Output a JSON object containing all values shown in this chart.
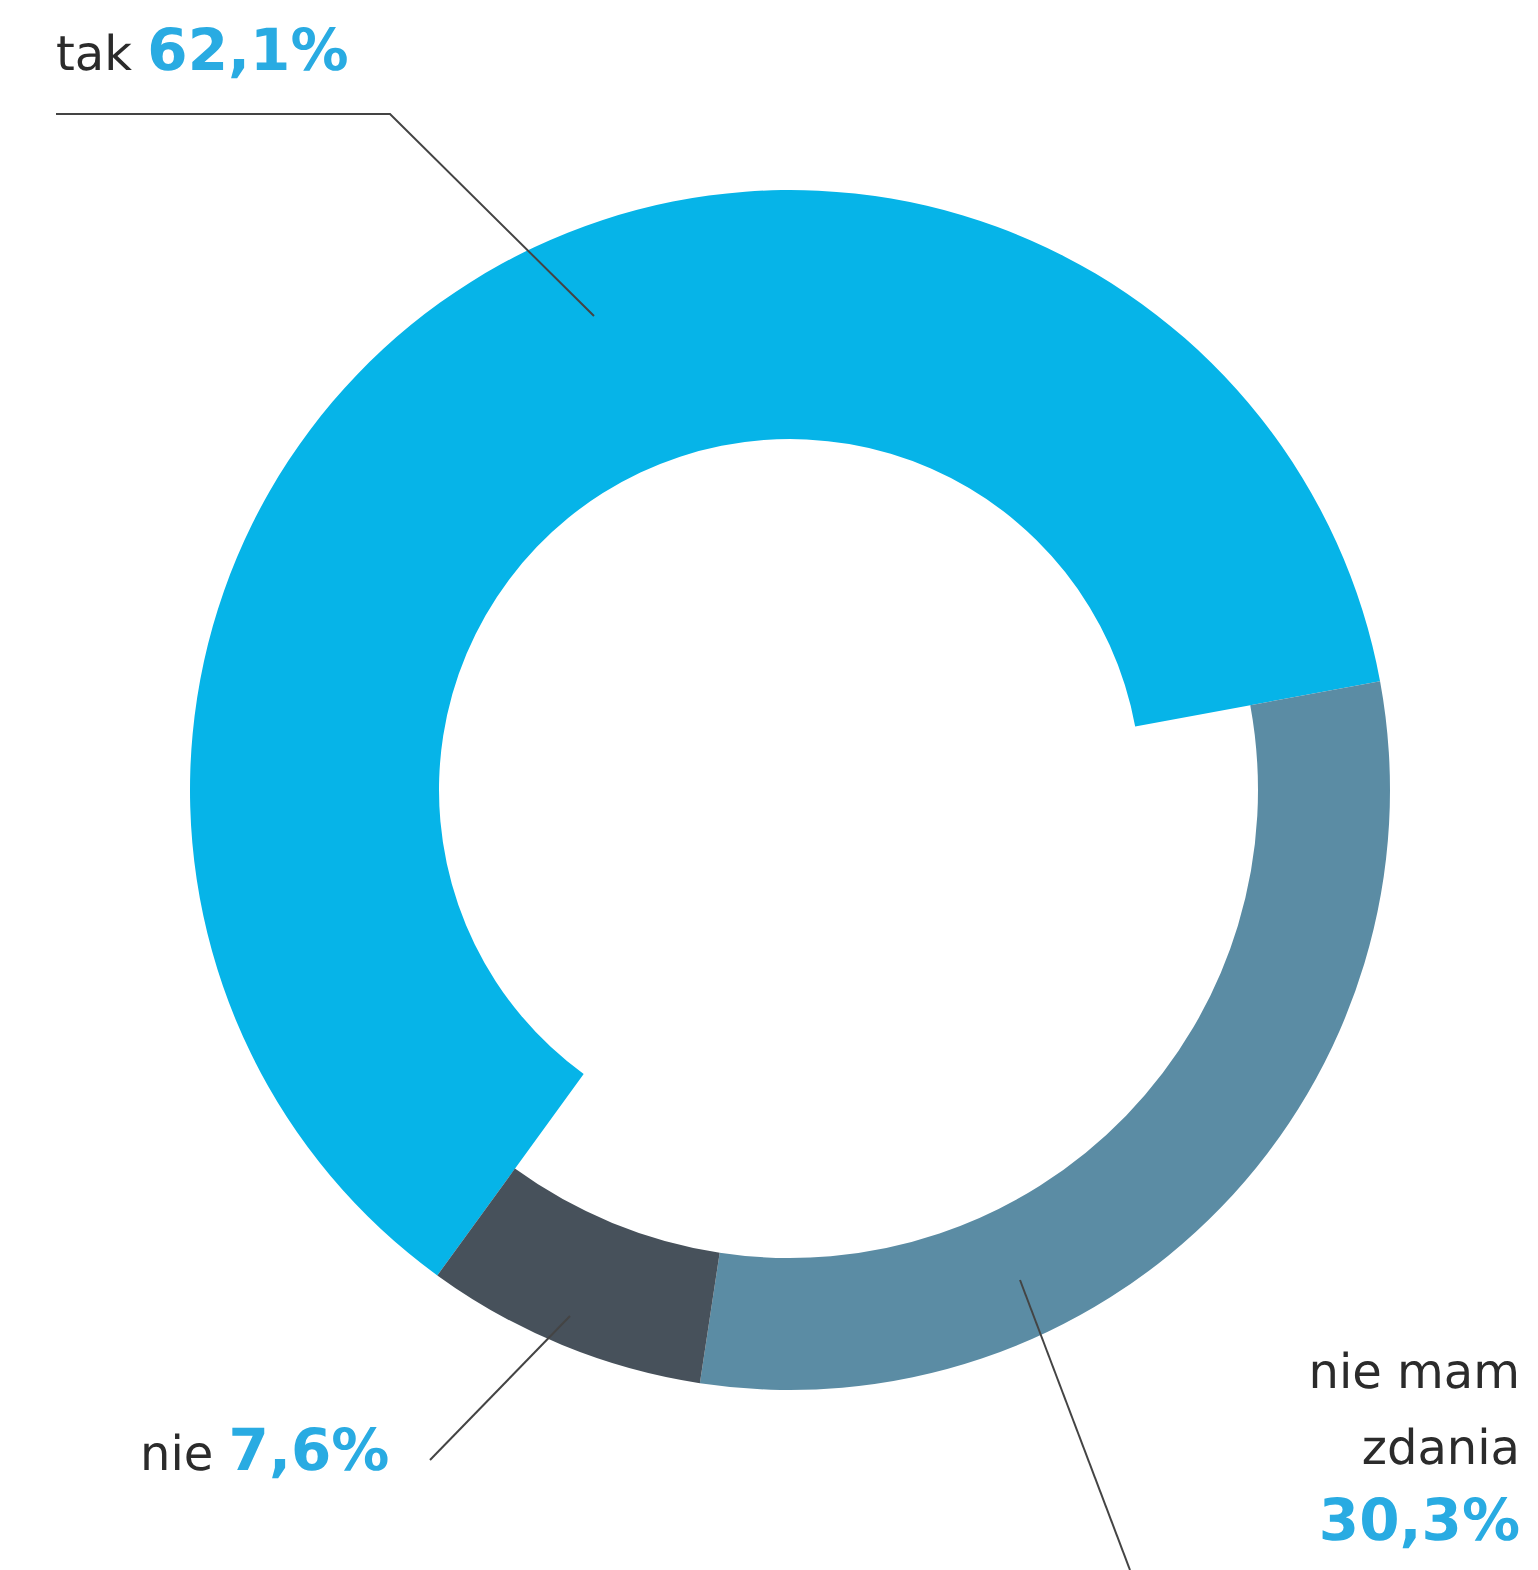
{
  "chart_data": {
    "type": "donut",
    "categories": [
      "tak",
      "nie mam zdania",
      "nie"
    ],
    "values": [
      62.1,
      30.3,
      7.6
    ],
    "value_labels": [
      "62,1%",
      "30,3%",
      "7,6%"
    ],
    "colors": [
      "#06b4e8",
      "#5b8ca4",
      "#47515b"
    ],
    "legend": false
  }
}
